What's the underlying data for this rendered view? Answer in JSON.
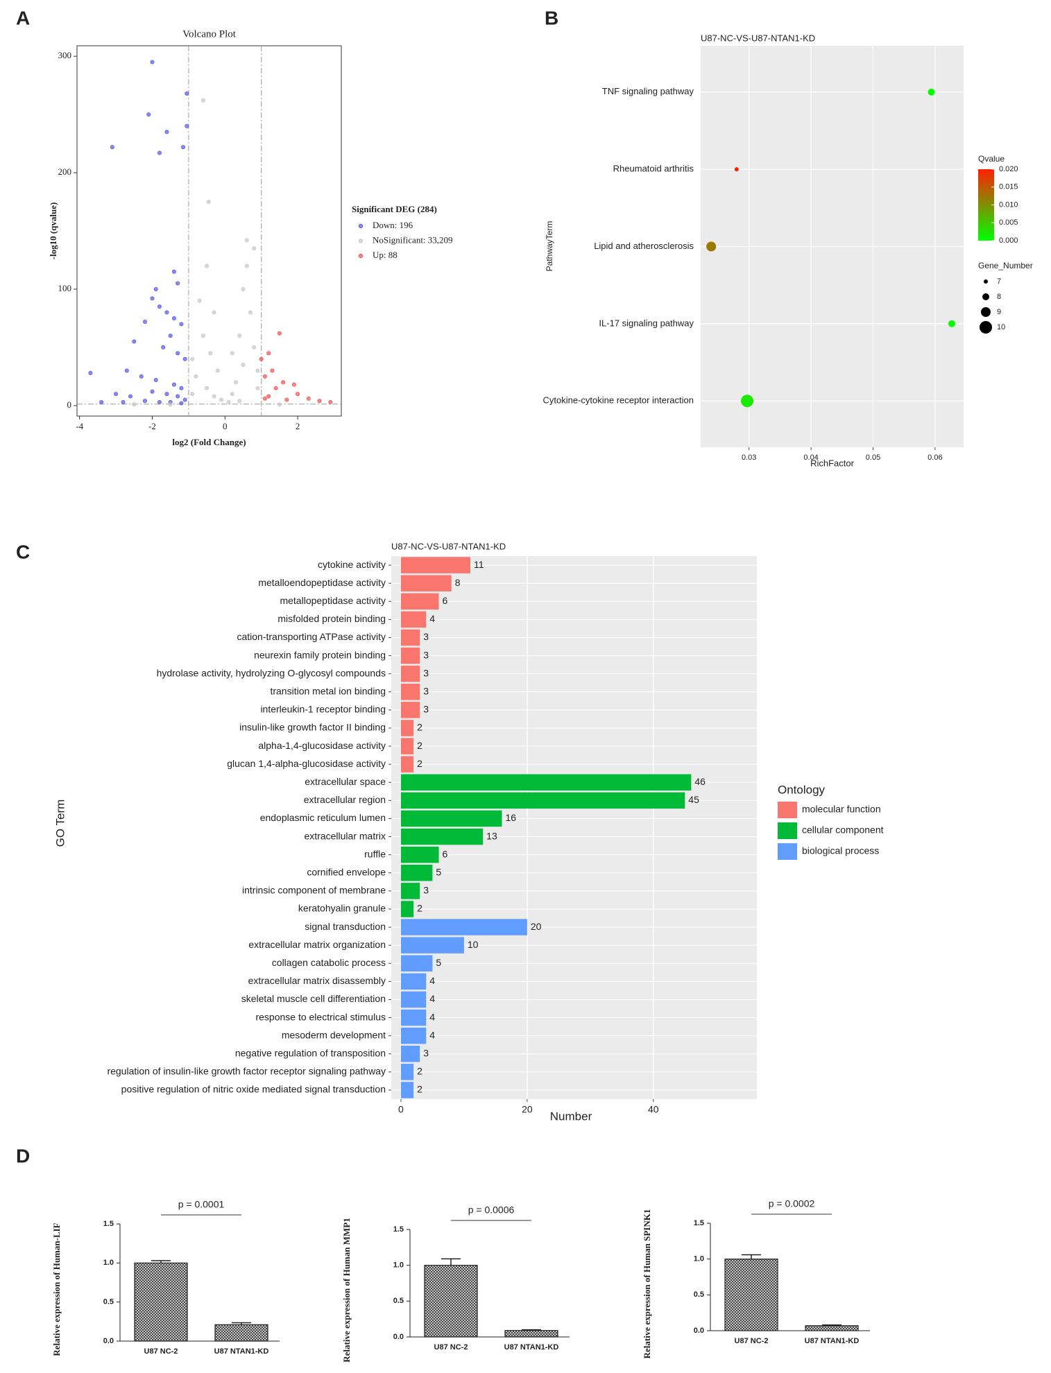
{
  "chart_data": [
    {
      "type": "scatter",
      "panel": "A",
      "title": "Volcano Plot",
      "xlabel": "log2 (Fold Change)",
      "ylabel": "-log10 (qvalue)",
      "xlim": [
        -4.07,
        3.2
      ],
      "ylim": [
        -9,
        309
      ],
      "xticks": [
        -4,
        -2,
        0,
        2
      ],
      "yticks": [
        0,
        100,
        200,
        300
      ],
      "vlines": [
        -1,
        1
      ],
      "hline": 1.3,
      "legend_title": "Significant DEG (284)",
      "series": [
        {
          "name": "Down: 196",
          "color": "#5a5ae6",
          "x": [
            -2.0,
            -1.05,
            -2.1,
            -1.6,
            -1.05,
            -1.15,
            -3.1,
            -1.8,
            -1.3,
            -1.4,
            -1.9,
            -2.0,
            -1.8,
            -1.6,
            -1.4,
            -2.2,
            -1.2,
            -1.5,
            -2.5,
            -1.7,
            -1.3,
            -1.1,
            -2.7,
            -3.7,
            -2.3,
            -1.9,
            -1.4,
            -1.2,
            -3.0,
            -2.6,
            -2.0,
            -1.6,
            -1.3,
            -1.1,
            -3.4,
            -2.8,
            -2.2,
            -1.8,
            -1.5,
            -1.2
          ],
          "values": [
            295,
            268,
            250,
            235,
            240,
            222,
            222,
            217,
            105,
            115,
            100,
            92,
            85,
            80,
            75,
            72,
            70,
            60,
            55,
            50,
            45,
            40,
            30,
            28,
            25,
            22,
            18,
            15,
            10,
            8,
            12,
            10,
            8,
            5,
            3,
            3,
            4,
            3,
            3,
            2
          ]
        },
        {
          "name": "NoSignificant: 33,209",
          "color": "#c8c8c8",
          "x": [
            -0.6,
            -0.45,
            -0.5,
            -0.3,
            -0.6,
            -0.4,
            -0.2,
            -0.8,
            -0.5,
            -0.3,
            0.1,
            0.3,
            0.4,
            0.6,
            0.5,
            0.7,
            0.8,
            0.5,
            0.9,
            0.2,
            -0.9,
            -1.5,
            -2.5,
            1.5,
            0.8,
            -0.7,
            0.6,
            -0.9,
            0.2,
            0.9,
            -0.1,
            0.4
          ],
          "values": [
            262,
            175,
            120,
            80,
            60,
            45,
            30,
            25,
            15,
            8,
            3,
            20,
            60,
            142,
            100,
            80,
            50,
            35,
            30,
            10,
            10,
            1,
            1,
            1,
            135,
            90,
            120,
            40,
            45,
            15,
            5,
            4
          ]
        },
        {
          "name": "Up: 88",
          "color": "#ee5555",
          "x": [
            1.5,
            1.2,
            1.0,
            1.3,
            1.1,
            1.6,
            1.9,
            1.4,
            2.0,
            1.2,
            2.3,
            2.6,
            2.9,
            1.7,
            1.1
          ],
          "values": [
            62,
            45,
            40,
            30,
            25,
            20,
            18,
            15,
            10,
            8,
            6,
            4,
            3,
            5,
            6
          ]
        }
      ]
    },
    {
      "type": "bubble",
      "panel": "B",
      "title": "U87-NC-VS-U87-NTAN1-KD",
      "xlabel": "RichFactor",
      "ylabel": "PathwayTerm",
      "categories": [
        "TNF signaling pathway",
        "Rheumatoid arthritis",
        "Lipid and atherosclerosis",
        "IL-17 signaling pathway",
        "Cytokine-cytokine receptor interaction"
      ],
      "x": [
        0.0594,
        0.028,
        0.0239,
        0.0627,
        0.0297
      ],
      "size": [
        8,
        7,
        9,
        8,
        10
      ],
      "qvalue": [
        0.0004,
        0.02,
        0.012,
        0.0004,
        0.002
      ],
      "xlim": [
        0.0222,
        0.0646
      ],
      "xticks": [
        0.03,
        0.04,
        0.05,
        0.06
      ],
      "color_legend_title": "Qvalue",
      "color_lim": [
        0,
        0.02
      ],
      "colors": [
        "#00ff00",
        "#ff2000"
      ],
      "color_ticks": [
        {
          "value": 0,
          "label": "0.000"
        },
        {
          "value": 0.005,
          "label": "0.005"
        },
        {
          "value": 0.01,
          "label": "0.010"
        },
        {
          "value": 0.015,
          "label": "0.015"
        },
        {
          "value": 0.02,
          "label": "0.020"
        }
      ],
      "size_legend_title": "Gene_Number",
      "size_ticks": [
        7,
        8,
        9,
        10
      ]
    },
    {
      "type": "barh",
      "panel": "C",
      "title": "U87-NC-VS-U87-NTAN1-KD",
      "xlabel": "Number",
      "ylabel": "GO Term",
      "legend_title": "Ontology",
      "categories": [
        "cytokine activity",
        "metalloendopeptidase activity",
        "metallopeptidase activity",
        "misfolded protein binding",
        "cation-transporting ATPase activity",
        "neurexin family protein binding",
        "hydrolase activity, hydrolyzing O-glycosyl compounds",
        "transition metal ion binding",
        "interleukin-1 receptor binding",
        "insulin-like growth factor II binding",
        "alpha-1,4-glucosidase activity",
        "glucan 1,4-alpha-glucosidase activity",
        "extracellular space",
        "extracellular region",
        "endoplasmic reticulum lumen",
        "extracellular matrix",
        "ruffle",
        "cornified envelope",
        "intrinsic component of membrane",
        "keratohyalin granule",
        "signal transduction",
        "extracellular matrix organization",
        "collagen catabolic process",
        "extracellular matrix disassembly",
        "skeletal muscle cell differentiation",
        "response to electrical stimulus",
        "mesoderm development",
        "negative regulation of transposition",
        "regulation of insulin-like growth factor receptor signaling pathway",
        "positive regulation of nitric oxide mediated signal transduction"
      ],
      "series": [
        {
          "name": "molecular function",
          "color": "#f8766d",
          "values": [
            11,
            8,
            6,
            4,
            3,
            3,
            3,
            3,
            3,
            2,
            2,
            2,
            null,
            null,
            null,
            null,
            null,
            null,
            null,
            null,
            null,
            null,
            null,
            null,
            null,
            null,
            null,
            null,
            null,
            null
          ]
        },
        {
          "name": "cellular component",
          "color": "#00ba38",
          "values": [
            null,
            null,
            null,
            null,
            null,
            null,
            null,
            null,
            null,
            null,
            null,
            null,
            46,
            45,
            16,
            13,
            6,
            5,
            3,
            2,
            null,
            null,
            null,
            null,
            null,
            null,
            null,
            null,
            null,
            null
          ]
        },
        {
          "name": "biological process",
          "color": "#619cff",
          "values": [
            null,
            null,
            null,
            null,
            null,
            null,
            null,
            null,
            null,
            null,
            null,
            null,
            null,
            null,
            null,
            null,
            null,
            null,
            null,
            null,
            20,
            10,
            5,
            4,
            4,
            4,
            4,
            3,
            2,
            2
          ]
        }
      ],
      "xlim": [
        -1.53,
        56.4
      ],
      "xticks": [
        0,
        20,
        40
      ]
    },
    {
      "type": "bar",
      "panel": "D",
      "ylabel": "Relative expression of Human-LIF",
      "annotation": "p = 0.0001",
      "categories": [
        "U87 NC-2",
        "U87 NTAN1-KD"
      ],
      "values": [
        1,
        0.21
      ],
      "errors": [
        0.03,
        0.025
      ],
      "ylim": [
        0,
        1.5
      ],
      "yticks": [
        {
          "value": 0,
          "label": "0.0"
        },
        0.5,
        {
          "value": 1,
          "label": "1.0"
        },
        1.5
      ]
    },
    {
      "type": "bar",
      "ylabel": "Relative expression of Human MMP1",
      "annotation": "p = 0.0006",
      "categories": [
        "U87 NC-2",
        "U87 NTAN1-KD"
      ],
      "values": [
        1,
        0.09
      ],
      "errors": [
        0.09,
        0.01
      ],
      "ylim": [
        0,
        1.5
      ],
      "yticks": [
        {
          "value": 0,
          "label": "0.0"
        },
        0.5,
        {
          "value": 1,
          "label": "1.0"
        },
        1.5
      ]
    },
    {
      "type": "bar",
      "ylabel": "Relative expression of Human SPINK1",
      "annotation": "p = 0.0002",
      "categories": [
        "U87 NC-2",
        "U87 NTAN1-KD"
      ],
      "values": [
        1,
        0.07
      ],
      "errors": [
        0.06,
        0.01
      ],
      "ylim": [
        0,
        1.5
      ],
      "yticks": [
        {
          "value": 0,
          "label": "0.0"
        },
        0.5,
        {
          "value": 1,
          "label": "1.0"
        },
        1.5
      ]
    }
  ]
}
